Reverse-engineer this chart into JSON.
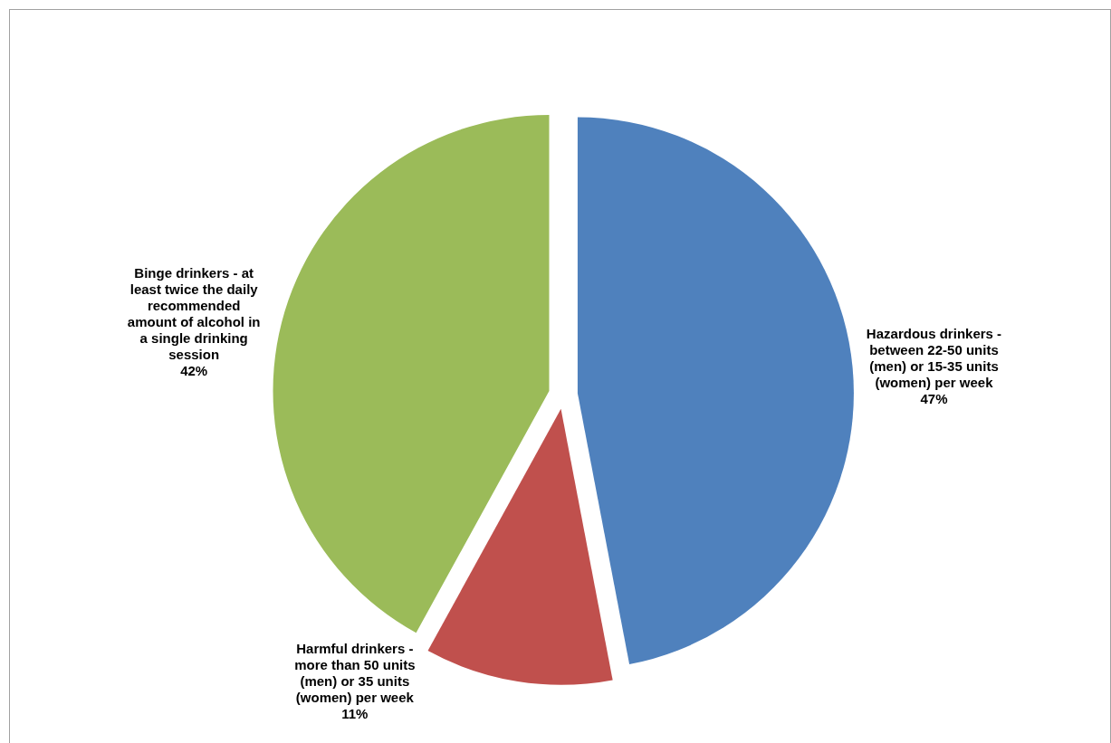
{
  "chart_data": {
    "type": "pie",
    "categories": [
      "Hazardous drinkers - between 22-50 units (men) or 15-35 units (women) per week",
      "Harmful drinkers - more than 50 units (men) or 35 units (women) per week",
      "Binge drinkers - at least twice the daily recommended amount of alcohol in a single drinking session"
    ],
    "values": [
      47,
      11,
      42
    ],
    "colors": [
      "#4f81bd",
      "#c0504d",
      "#9bbb59"
    ],
    "value_labels": [
      "47%",
      "11%",
      "42%"
    ]
  }
}
